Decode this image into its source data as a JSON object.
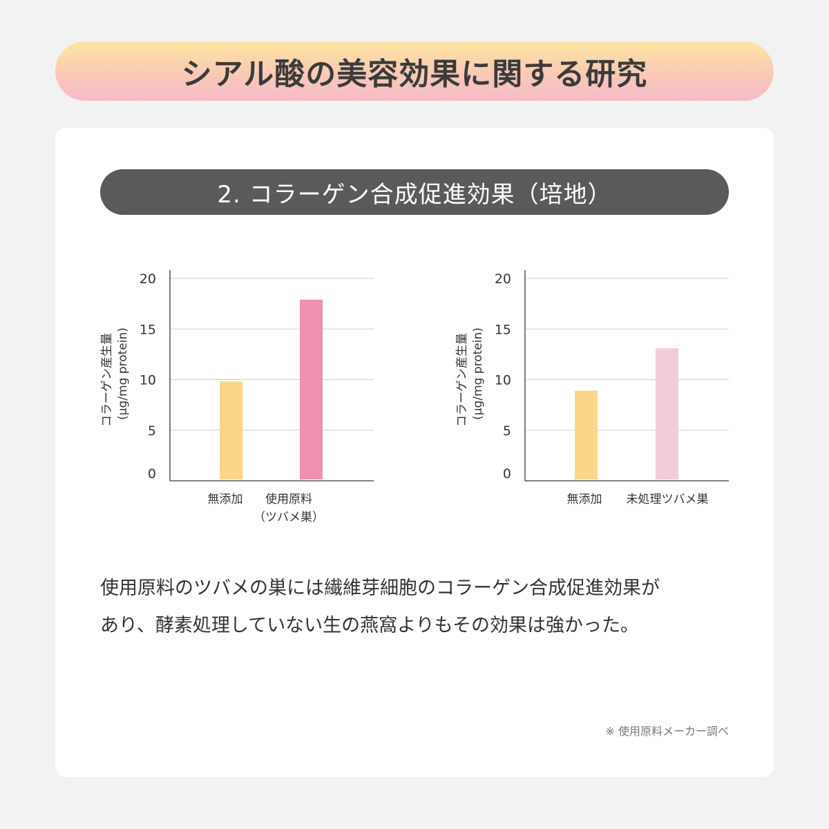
{
  "banner": {
    "title": "シアル酸の美容効果に関する研究"
  },
  "section": {
    "title": "2. コラーゲン合成促進効果（培地）"
  },
  "chart_data": [
    {
      "type": "bar",
      "ylabel_line1": "コラーゲン産生量",
      "ylabel_line2": "(μg/mg protein)",
      "ylim": [
        0,
        20
      ],
      "yticks": [
        0,
        5,
        10,
        15,
        20
      ],
      "grid": true,
      "categories": [
        [
          "無添加"
        ],
        [
          "使用原料",
          "（ツバメ巣）"
        ]
      ],
      "values": [
        9.8,
        17.9
      ],
      "colors": [
        "#fbd588",
        "#ee91b0"
      ]
    },
    {
      "type": "bar",
      "ylabel_line1": "コラーゲン産生量",
      "ylabel_line2": "(μg/mg protein)",
      "ylim": [
        0,
        20
      ],
      "yticks": [
        0,
        5,
        10,
        15,
        20
      ],
      "grid": true,
      "categories": [
        [
          "無添加"
        ],
        [
          "未処理ツバメ巣"
        ]
      ],
      "values": [
        8.9,
        13.1
      ],
      "colors": [
        "#fbd588",
        "#f0cdd9"
      ]
    }
  ],
  "caption": {
    "line1": "使用原料のツバメの巣には繊維芽細胞のコラーゲン合成促進効果が",
    "line2": "あり、酵素処理していない生の燕窩よりもその効果は強かった。"
  },
  "footnote": "※ 使用原料メーカー調べ"
}
